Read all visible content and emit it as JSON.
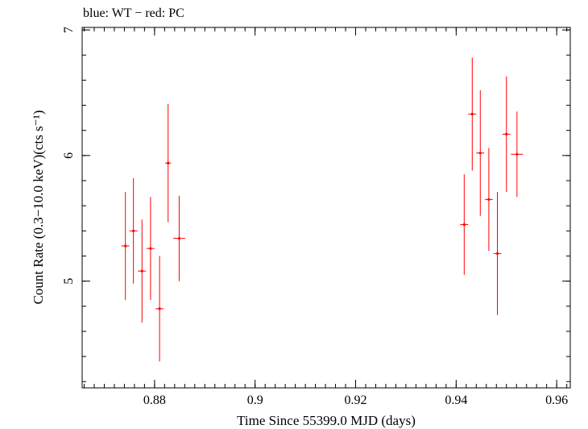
{
  "header": {
    "legend_text": "blue: WT − red: PC"
  },
  "colors": {
    "pc": "#ff0000",
    "axis": "#000000",
    "background": "#ffffff"
  },
  "chart_data": {
    "type": "scatter",
    "title": "blue: WT − red: PC",
    "xlabel": "Time Since 55399.0 MJD (days)",
    "ylabel": "Count Rate (0.3−10.0 keV)(cts s⁻¹)",
    "xlim": [
      0.8656,
      0.9627
    ],
    "ylim": [
      4.15,
      7.02
    ],
    "x_ticks": [
      {
        "value": 0.88,
        "label": "0.88"
      },
      {
        "value": 0.9,
        "label": "0.9"
      },
      {
        "value": 0.92,
        "label": "0.92"
      },
      {
        "value": 0.94,
        "label": "0.94"
      },
      {
        "value": 0.96,
        "label": "0.96"
      }
    ],
    "y_ticks": [
      {
        "value": 5,
        "label": "5"
      },
      {
        "value": 6,
        "label": "6"
      },
      {
        "value": 7,
        "label": "7"
      }
    ],
    "grid": false,
    "series": [
      {
        "name": "PC",
        "color": "#ff0000",
        "points": [
          {
            "x": 0.8742,
            "y": 5.28,
            "xerr": 0.0008,
            "yerr": 0.43
          },
          {
            "x": 0.8758,
            "y": 5.4,
            "xerr": 0.0008,
            "yerr": 0.42
          },
          {
            "x": 0.8775,
            "y": 5.08,
            "xerr": 0.0008,
            "yerr": 0.41
          },
          {
            "x": 0.8792,
            "y": 5.26,
            "xerr": 0.0008,
            "yerr": 0.41
          },
          {
            "x": 0.881,
            "y": 4.78,
            "xerr": 0.0008,
            "yerr": 0.42
          },
          {
            "x": 0.8827,
            "y": 5.94,
            "xerr": 0.0006,
            "yerr": 0.47
          },
          {
            "x": 0.8849,
            "y": 5.34,
            "xerr": 0.0012,
            "yerr": 0.34
          },
          {
            "x": 0.9416,
            "y": 5.45,
            "xerr": 0.0008,
            "yerr": 0.4
          },
          {
            "x": 0.9432,
            "y": 6.33,
            "xerr": 0.0008,
            "yerr": 0.45
          },
          {
            "x": 0.9448,
            "y": 6.02,
            "xerr": 0.0008,
            "yerr": 0.5
          },
          {
            "x": 0.9465,
            "y": 5.65,
            "xerr": 0.0008,
            "yerr": 0.41
          },
          {
            "x": 0.9482,
            "y": 5.22,
            "xerr": 0.0008,
            "yerr": 0.49
          },
          {
            "x": 0.95,
            "y": 6.17,
            "xerr": 0.0008,
            "yerr": 0.46
          },
          {
            "x": 0.9521,
            "y": 6.01,
            "xerr": 0.0012,
            "yerr": 0.34
          }
        ]
      }
    ]
  }
}
